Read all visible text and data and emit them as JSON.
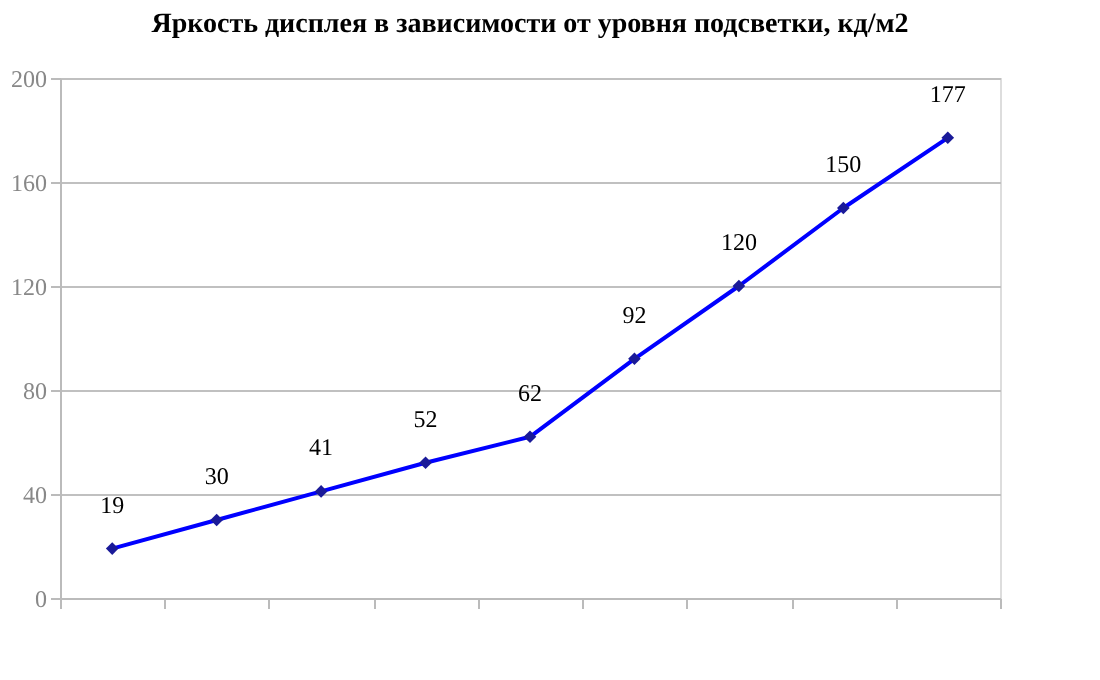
{
  "chart_data": {
    "type": "line",
    "title": "Яркость дисплея в зависимости от уровня подсветки, кд/м2",
    "categories": [
      null,
      null,
      null,
      null,
      null,
      null,
      null,
      null,
      null
    ],
    "series": [
      {
        "color": "#0000ff",
        "values": [
          19,
          30,
          41,
          52,
          62,
          92,
          120,
          150,
          177
        ]
      }
    ],
    "ylim": [
      0,
      200
    ],
    "yticks": [
      0,
      40,
      80,
      120,
      160,
      200
    ],
    "grid": "y",
    "marker": "diamond",
    "line_style": "solid",
    "data_labels": true,
    "tick_labels": "y"
  }
}
